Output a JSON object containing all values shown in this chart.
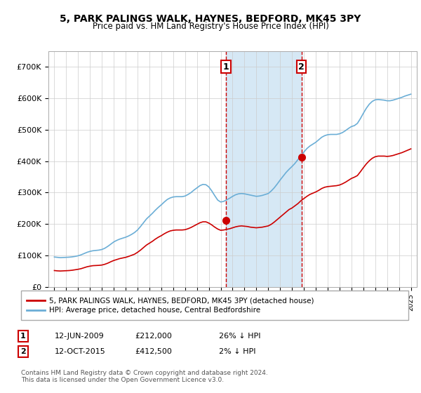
{
  "title": "5, PARK PALINGS WALK, HAYNES, BEDFORD, MK45 3PY",
  "subtitle": "Price paid vs. HM Land Registry's House Price Index (HPI)",
  "ylabel_ticks": [
    "£0",
    "£100K",
    "£200K",
    "£300K",
    "£400K",
    "£500K",
    "£600K",
    "£700K"
  ],
  "ytick_values": [
    0,
    100000,
    200000,
    300000,
    400000,
    500000,
    600000,
    700000
  ],
  "ylim": [
    0,
    750000
  ],
  "xlim_start": 1994.5,
  "xlim_end": 2025.5,
  "hpi_color": "#6baed6",
  "price_color": "#cc0000",
  "sale1_date": 2009.45,
  "sale1_price": 212000,
  "sale2_date": 2015.79,
  "sale2_price": 412500,
  "shade_color": "#d6e8f5",
  "vline_color": "#cc0000",
  "legend_label_price": "5, PARK PALINGS WALK, HAYNES, BEDFORD, MK45 3PY (detached house)",
  "legend_label_hpi": "HPI: Average price, detached house, Central Bedfordshire",
  "annotation1_label": "1",
  "annotation1_text": "12-JUN-2009      £212,000      26% ↓ HPI",
  "annotation2_label": "2",
  "annotation2_text": "12-OCT-2015      £412,500      2% ↓ HPI",
  "footer": "Contains HM Land Registry data © Crown copyright and database right 2024.\nThis data is licensed under the Open Government Licence v3.0.",
  "hpi_data": {
    "years": [
      1995,
      1995.25,
      1995.5,
      1995.75,
      1996,
      1996.25,
      1996.5,
      1996.75,
      1997,
      1997.25,
      1997.5,
      1997.75,
      1998,
      1998.25,
      1998.5,
      1998.75,
      1999,
      1999.25,
      1999.5,
      1999.75,
      2000,
      2000.25,
      2000.5,
      2000.75,
      2001,
      2001.25,
      2001.5,
      2001.75,
      2002,
      2002.25,
      2002.5,
      2002.75,
      2003,
      2003.25,
      2003.5,
      2003.75,
      2004,
      2004.25,
      2004.5,
      2004.75,
      2005,
      2005.25,
      2005.5,
      2005.75,
      2006,
      2006.25,
      2006.5,
      2006.75,
      2007,
      2007.25,
      2007.5,
      2007.75,
      2008,
      2008.25,
      2008.5,
      2008.75,
      2009,
      2009.25,
      2009.5,
      2009.75,
      2010,
      2010.25,
      2010.5,
      2010.75,
      2011,
      2011.25,
      2011.5,
      2011.75,
      2012,
      2012.25,
      2012.5,
      2012.75,
      2013,
      2013.25,
      2013.5,
      2013.75,
      2014,
      2014.25,
      2014.5,
      2014.75,
      2015,
      2015.25,
      2015.5,
      2015.75,
      2016,
      2016.25,
      2016.5,
      2016.75,
      2017,
      2017.25,
      2017.5,
      2017.75,
      2018,
      2018.25,
      2018.5,
      2018.75,
      2019,
      2019.25,
      2019.5,
      2019.75,
      2020,
      2020.25,
      2020.5,
      2020.75,
      2021,
      2021.25,
      2021.5,
      2021.75,
      2022,
      2022.25,
      2022.5,
      2022.75,
      2023,
      2023.25,
      2023.5,
      2023.75,
      2024,
      2024.25,
      2024.5,
      2024.75,
      2025
    ],
    "values": [
      95000,
      94000,
      93000,
      93500,
      94000,
      94500,
      95500,
      97000,
      99000,
      102000,
      106000,
      110000,
      113000,
      115000,
      116000,
      117000,
      119000,
      123000,
      129000,
      136000,
      143000,
      148000,
      152000,
      155000,
      158000,
      162000,
      167000,
      173000,
      181000,
      192000,
      204000,
      216000,
      225000,
      234000,
      244000,
      253000,
      261000,
      270000,
      278000,
      283000,
      286000,
      287000,
      287000,
      287000,
      289000,
      294000,
      300000,
      308000,
      315000,
      322000,
      326000,
      325000,
      318000,
      305000,
      290000,
      276000,
      270000,
      272000,
      277000,
      282000,
      288000,
      293000,
      296000,
      297000,
      296000,
      294000,
      292000,
      290000,
      288000,
      289000,
      291000,
      294000,
      297000,
      305000,
      315000,
      327000,
      340000,
      352000,
      364000,
      374000,
      383000,
      393000,
      405000,
      417000,
      429000,
      440000,
      448000,
      454000,
      460000,
      468000,
      476000,
      481000,
      484000,
      485000,
      485000,
      485000,
      487000,
      491000,
      497000,
      504000,
      510000,
      513000,
      520000,
      535000,
      552000,
      568000,
      581000,
      590000,
      595000,
      596000,
      595000,
      594000,
      592000,
      592000,
      594000,
      597000,
      600000,
      603000,
      607000,
      610000,
      613000
    ]
  },
  "price_data": {
    "years": [
      1995,
      1995.25,
      1995.5,
      1995.75,
      1996,
      1996.25,
      1996.5,
      1996.75,
      1997,
      1997.25,
      1997.5,
      1997.75,
      1998,
      1998.25,
      1998.5,
      1998.75,
      1999,
      1999.25,
      1999.5,
      1999.75,
      2000,
      2000.25,
      2000.5,
      2000.75,
      2001,
      2001.25,
      2001.5,
      2001.75,
      2002,
      2002.25,
      2002.5,
      2002.75,
      2003,
      2003.25,
      2003.5,
      2003.75,
      2004,
      2004.25,
      2004.5,
      2004.75,
      2005,
      2005.25,
      2005.5,
      2005.75,
      2006,
      2006.25,
      2006.5,
      2006.75,
      2007,
      2007.25,
      2007.5,
      2007.75,
      2008,
      2008.25,
      2008.5,
      2008.75,
      2009,
      2009.25,
      2009.5,
      2009.75,
      2010,
      2010.25,
      2010.5,
      2010.75,
      2011,
      2011.25,
      2011.5,
      2011.75,
      2012,
      2012.25,
      2012.5,
      2012.75,
      2013,
      2013.25,
      2013.5,
      2013.75,
      2014,
      2014.25,
      2014.5,
      2014.75,
      2015,
      2015.25,
      2015.5,
      2015.75,
      2016,
      2016.25,
      2016.5,
      2016.75,
      2017,
      2017.25,
      2017.5,
      2017.75,
      2018,
      2018.25,
      2018.5,
      2018.75,
      2019,
      2019.25,
      2019.5,
      2019.75,
      2020,
      2020.25,
      2020.5,
      2020.75,
      2021,
      2021.25,
      2021.5,
      2021.75,
      2022,
      2022.25,
      2022.5,
      2022.75,
      2023,
      2023.25,
      2023.5,
      2023.75,
      2024,
      2024.25,
      2024.5,
      2024.75,
      2025
    ],
    "values": [
      52000,
      51000,
      50500,
      51000,
      51500,
      52000,
      53000,
      54500,
      56000,
      58000,
      61000,
      64000,
      66000,
      67500,
      68000,
      68500,
      69500,
      72000,
      75500,
      80000,
      84000,
      87000,
      90000,
      92000,
      94000,
      97000,
      100500,
      104000,
      110000,
      117000,
      125000,
      133000,
      139000,
      145000,
      152000,
      158000,
      163000,
      169000,
      174000,
      178000,
      180000,
      181000,
      181000,
      181000,
      182000,
      185000,
      189000,
      194000,
      199000,
      204000,
      207000,
      207000,
      203000,
      197000,
      190000,
      184000,
      180000,
      181000,
      183000,
      185000,
      188000,
      191000,
      193000,
      194000,
      193000,
      192000,
      190000,
      189000,
      188000,
      189000,
      190000,
      192000,
      194000,
      199000,
      206000,
      214000,
      222000,
      230000,
      238000,
      246000,
      251000,
      258000,
      265000,
      274000,
      281000,
      288000,
      294000,
      298000,
      302000,
      307000,
      313000,
      317000,
      319000,
      320000,
      321000,
      322000,
      324000,
      328000,
      333000,
      339000,
      345000,
      349000,
      354000,
      366000,
      379000,
      391000,
      401000,
      409000,
      414000,
      416000,
      416000,
      416000,
      415000,
      416000,
      418000,
      421000,
      424000,
      427000,
      431000,
      435000,
      439000
    ]
  }
}
